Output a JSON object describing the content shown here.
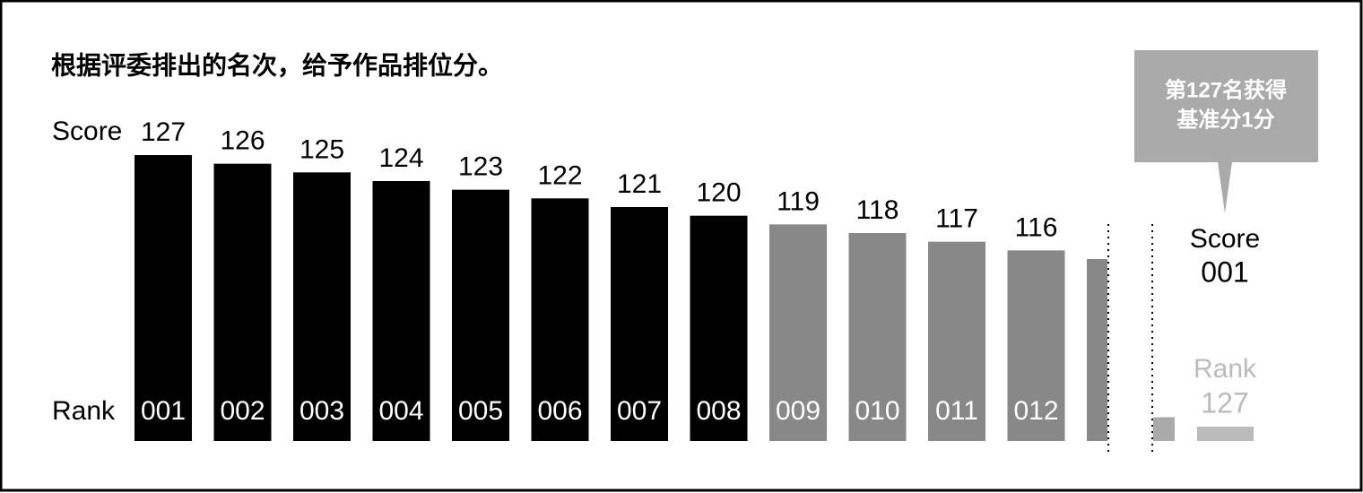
{
  "chart_data": {
    "type": "bar",
    "title": "根据评委排出的名次，给予作品排位分。",
    "y_label": "Score",
    "x_label": "Rank",
    "categories": [
      "001",
      "002",
      "003",
      "004",
      "005",
      "006",
      "007",
      "008",
      "009",
      "010",
      "011",
      "012",
      null
    ],
    "values": [
      127,
      126,
      125,
      124,
      123,
      122,
      121,
      120,
      119,
      118,
      117,
      116,
      115
    ],
    "colors": [
      "#000000",
      "#000000",
      "#000000",
      "#000000",
      "#000000",
      "#000000",
      "#000000",
      "#000000",
      "#888888",
      "#888888",
      "#888888",
      "#888888",
      "#888888"
    ],
    "ylim": [
      94,
      127
    ],
    "annotation": [
      "第127名获得",
      "基准分1分"
    ],
    "last": {
      "y_label": "Score",
      "x_label": "Rank",
      "categories": [
        "127"
      ],
      "values": [
        1
      ],
      "value_labels": [
        "001"
      ],
      "color": "#aaaaaa",
      "ylim": [
        0,
        12
      ]
    }
  }
}
